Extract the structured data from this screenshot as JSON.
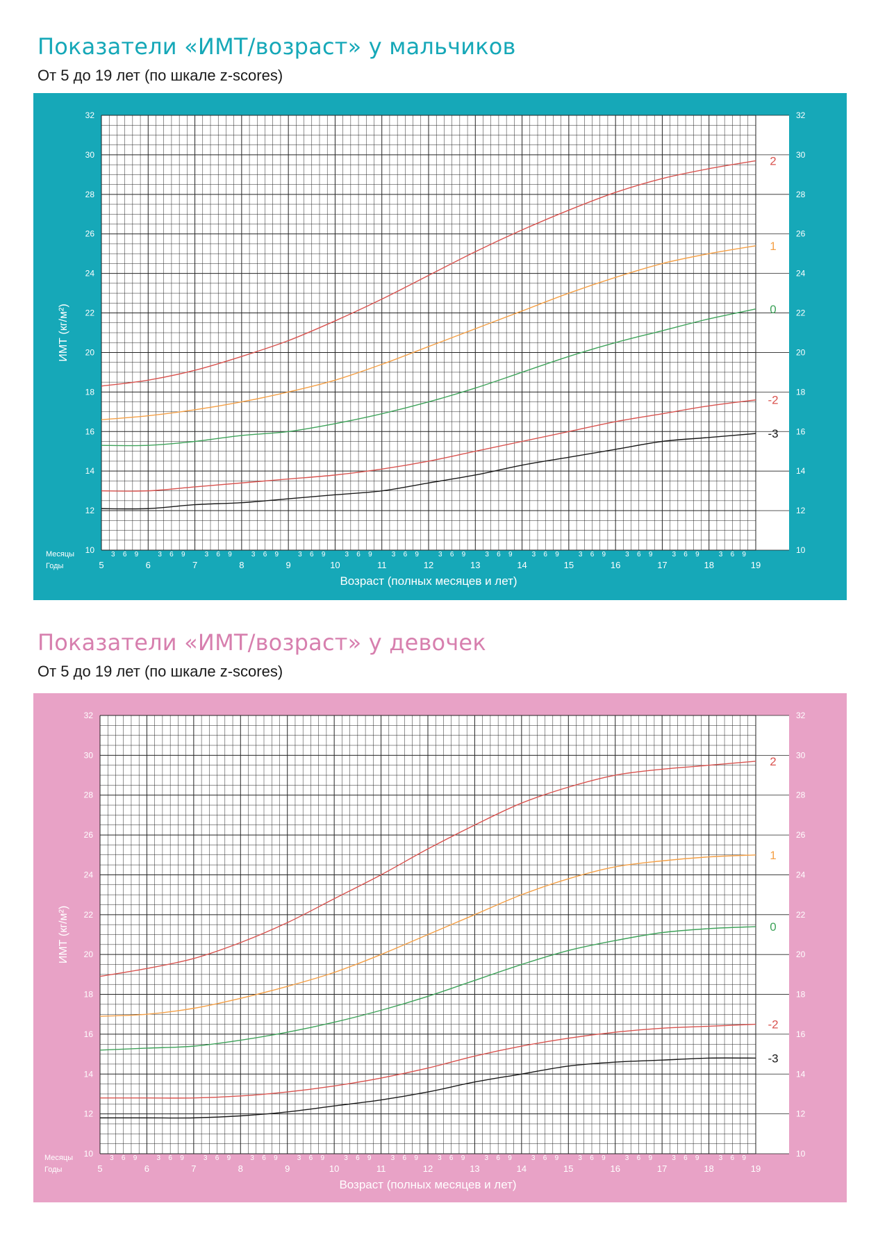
{
  "colors": {
    "boys_accent": "#16a8b8",
    "girls_accent": "#e8a2c6",
    "girls_title": "#d77fae",
    "z2": "#d9534f",
    "z1": "#f5a046",
    "z0": "#3ea35a",
    "zneg2": "#d9534f",
    "zneg3": "#1a1a1a",
    "grid": "#222222"
  },
  "chart_data": [
    {
      "type": "line",
      "title": "Показатели «ИМТ/возраст» у мальчиков",
      "subtitle": "От 5 до 19 лет (по шкале z-scores)",
      "ylabel": "ИМТ (кг/м²)",
      "xlabel": "Возраст (полных месяцев и лет)",
      "months_label": "Месяцы",
      "years_label": "Годы",
      "month_ticks": [
        "3",
        "6",
        "9"
      ],
      "ylim": [
        10,
        32
      ],
      "yticks": [
        10,
        12,
        14,
        16,
        18,
        20,
        22,
        24,
        26,
        28,
        30,
        32
      ],
      "xlim": [
        5,
        19
      ],
      "xticks": [
        5,
        6,
        7,
        8,
        9,
        10,
        11,
        12,
        13,
        14,
        15,
        16,
        17,
        18,
        19
      ],
      "x": [
        5,
        6,
        7,
        8,
        9,
        10,
        11,
        12,
        13,
        14,
        15,
        16,
        17,
        18,
        19
      ],
      "series": [
        {
          "name": "2",
          "color_key": "z2",
          "values": [
            18.3,
            18.6,
            19.1,
            19.8,
            20.6,
            21.6,
            22.7,
            23.9,
            25.1,
            26.2,
            27.2,
            28.1,
            28.8,
            29.3,
            29.7
          ]
        },
        {
          "name": "1",
          "color_key": "z1",
          "values": [
            16.6,
            16.8,
            17.1,
            17.5,
            18.0,
            18.6,
            19.4,
            20.3,
            21.2,
            22.1,
            23.0,
            23.8,
            24.5,
            25.0,
            25.4
          ]
        },
        {
          "name": "0",
          "color_key": "z0",
          "values": [
            15.3,
            15.3,
            15.5,
            15.8,
            16.0,
            16.4,
            16.9,
            17.5,
            18.2,
            19.0,
            19.8,
            20.5,
            21.1,
            21.7,
            22.2
          ]
        },
        {
          "name": "-2",
          "color_key": "zneg2",
          "values": [
            13.0,
            13.0,
            13.2,
            13.4,
            13.6,
            13.8,
            14.1,
            14.5,
            15.0,
            15.5,
            16.0,
            16.5,
            16.9,
            17.3,
            17.6
          ]
        },
        {
          "name": "-3",
          "color_key": "zneg3",
          "values": [
            12.1,
            12.1,
            12.3,
            12.4,
            12.6,
            12.8,
            13.0,
            13.4,
            13.8,
            14.3,
            14.7,
            15.1,
            15.5,
            15.7,
            15.9
          ]
        }
      ]
    },
    {
      "type": "line",
      "title": "Показатели «ИМТ/возраст» у девочек",
      "subtitle": "От 5 до 19 лет (по шкале z-scores)",
      "ylabel": "ИМТ (кг/м²)",
      "xlabel": "Возраст (полных месяцев и лет)",
      "months_label": "Месяцы",
      "years_label": "Годы",
      "month_ticks": [
        "3",
        "6",
        "9"
      ],
      "ylim": [
        10,
        32
      ],
      "yticks": [
        10,
        12,
        14,
        16,
        18,
        20,
        22,
        24,
        26,
        28,
        30,
        32
      ],
      "xlim": [
        5,
        19
      ],
      "xticks": [
        5,
        6,
        7,
        8,
        9,
        10,
        11,
        12,
        13,
        14,
        15,
        16,
        17,
        18,
        19
      ],
      "x": [
        5,
        6,
        7,
        8,
        9,
        10,
        11,
        12,
        13,
        14,
        15,
        16,
        17,
        18,
        19
      ],
      "series": [
        {
          "name": "2",
          "color_key": "z2",
          "values": [
            18.9,
            19.3,
            19.8,
            20.6,
            21.6,
            22.8,
            24.0,
            25.3,
            26.5,
            27.6,
            28.4,
            29.0,
            29.3,
            29.5,
            29.7
          ]
        },
        {
          "name": "1",
          "color_key": "z1",
          "values": [
            16.9,
            17.0,
            17.3,
            17.8,
            18.4,
            19.1,
            20.0,
            21.0,
            22.0,
            23.0,
            23.8,
            24.4,
            24.7,
            24.9,
            25.0
          ]
        },
        {
          "name": "0",
          "color_key": "z0",
          "values": [
            15.2,
            15.3,
            15.4,
            15.7,
            16.1,
            16.6,
            17.2,
            17.9,
            18.7,
            19.5,
            20.2,
            20.7,
            21.1,
            21.3,
            21.4
          ]
        },
        {
          "name": "-2",
          "color_key": "zneg2",
          "values": [
            12.8,
            12.8,
            12.8,
            12.9,
            13.1,
            13.4,
            13.8,
            14.3,
            14.9,
            15.4,
            15.8,
            16.1,
            16.3,
            16.4,
            16.5
          ]
        },
        {
          "name": "-3",
          "color_key": "zneg3",
          "values": [
            11.8,
            11.8,
            11.8,
            11.9,
            12.1,
            12.4,
            12.7,
            13.1,
            13.6,
            14.0,
            14.4,
            14.6,
            14.7,
            14.8,
            14.8
          ]
        }
      ]
    }
  ]
}
